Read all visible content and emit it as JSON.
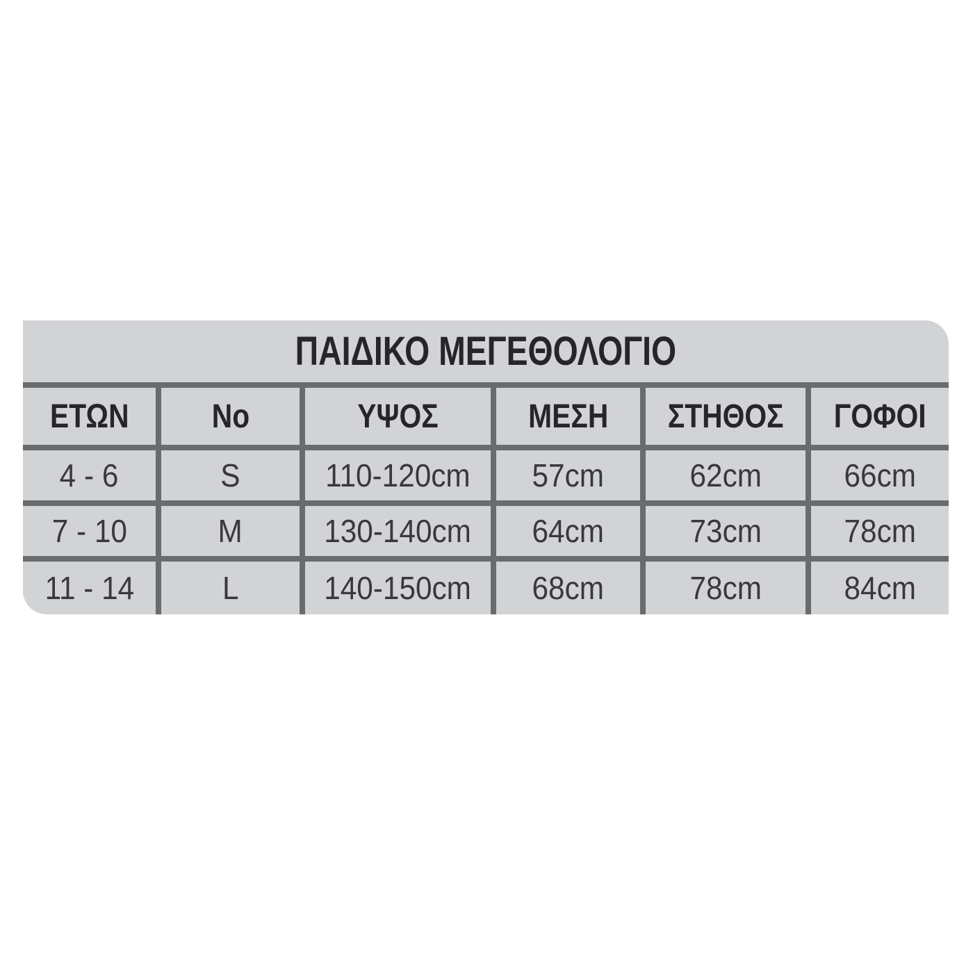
{
  "page": {
    "background": "#ffffff"
  },
  "panel": {
    "title": "ΠΑΙΔΙΚΟ ΜΕΓΕΘΟΛΟΓΙΟ",
    "colors": {
      "panel_bg": "#d2d3d5",
      "grid_line": "#6a6b6d",
      "header_text": "#262628",
      "data_text": "#39393b"
    }
  },
  "table": {
    "columns": [
      "ΕΤΩΝ",
      "No",
      "ΥΨΟΣ",
      "ΜΕΣΗ",
      "ΣΤΗΘΟΣ",
      "ΓΟΦΟΙ"
    ],
    "rows": [
      [
        "4 - 6",
        "S",
        "110-120cm",
        "57cm",
        "62cm",
        "66cm"
      ],
      [
        "7 - 10",
        "M",
        "130-140cm",
        "64cm",
        "73cm",
        "78cm"
      ],
      [
        "11 - 14",
        "L",
        "140-150cm",
        "68cm",
        "78cm",
        "84cm"
      ]
    ]
  },
  "chart_data": {
    "type": "table",
    "title": "ΠΑΙΔΙΚΟ ΜΕΓΕΘΟΛΟΓΙΟ",
    "columns": [
      "ΕΤΩΝ",
      "No",
      "ΥΨΟΣ",
      "ΜΕΣΗ",
      "ΣΤΗΘΟΣ",
      "ΓΟΦΟΙ"
    ],
    "rows": [
      [
        "4 - 6",
        "S",
        "110-120cm",
        "57cm",
        "62cm",
        "66cm"
      ],
      [
        "7 - 10",
        "M",
        "130-140cm",
        "64cm",
        "73cm",
        "78cm"
      ],
      [
        "11 - 14",
        "L",
        "140-150cm",
        "68cm",
        "78cm",
        "84cm"
      ]
    ],
    "legend_position": "none",
    "grid": true
  }
}
